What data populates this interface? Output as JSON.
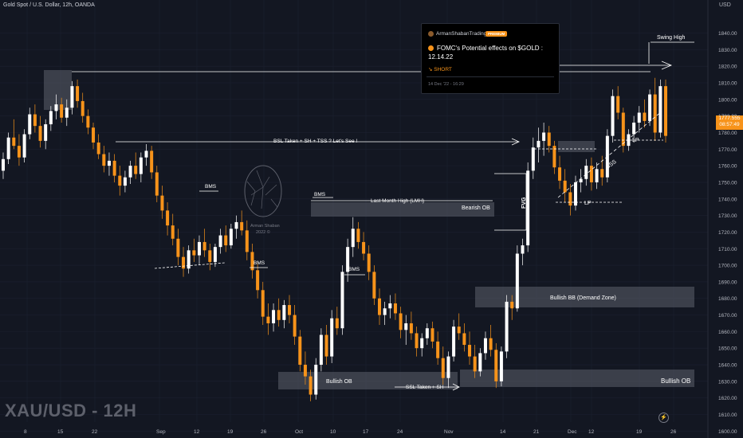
{
  "header": {
    "symbol_line": "Gold Spot / U.S. Dollar, 12h, OANDA"
  },
  "watermark": "XAU/USD - 12H",
  "axis": {
    "unit": "USD",
    "price_ticks": [
      1840,
      1830,
      1820,
      1810,
      1800,
      1790,
      1780,
      1770,
      1760,
      1750,
      1740,
      1730,
      1720,
      1710,
      1700,
      1690,
      1680,
      1670,
      1660,
      1650,
      1640,
      1630,
      1620,
      1610,
      1600
    ],
    "date_ticks": [
      "8",
      "15",
      "22",
      "Sep",
      "12",
      "19",
      "26",
      "Oct",
      "10",
      "17",
      "24",
      "Nov",
      "14",
      "21",
      "Dec",
      "12",
      "19",
      "26"
    ]
  },
  "current_price": {
    "value": "1777.555",
    "countdown": "08:57:49"
  },
  "idea_card": {
    "author": "ArmanShabanTrading",
    "badge": "PREMIUM",
    "title": "FOMC's Potential effects on $GOLD : 12.14.22",
    "direction": "↘ SHORT",
    "timestamp": "14 Dec '22 - 16:29"
  },
  "logo": {
    "line1": "Arman Shaban",
    "line2": "2022 ©"
  },
  "annotations": {
    "swing_high": "Swing High",
    "bsl": "BSL Taken + SH + TSS ? Let's See !",
    "bms": "BMS",
    "lmh": "Last Month High (LMH)",
    "bearish_ob": "Bearish OB",
    "fvg": "FVG",
    "lp": "LP",
    "sss": "SSS",
    "bullish_bb": "Bullish BB (Demand Zone)",
    "bullish_ob": "Bullish OB",
    "ssl": "SSL Taken + SH"
  },
  "colors": {
    "bg": "#131722",
    "up": "#ffffff",
    "down": "#f7931a",
    "zone": "#5d606b",
    "grid": "#1e222d"
  },
  "chart_data": {
    "type": "candlestick",
    "symbol": "XAU/USD",
    "timeframe": "12h",
    "ylim": [
      1598,
      1845
    ],
    "candles": [
      [
        1757,
        1768,
        1752,
        1764
      ],
      [
        1764,
        1780,
        1761,
        1777
      ],
      [
        1777,
        1788,
        1770,
        1772
      ],
      [
        1772,
        1779,
        1760,
        1765
      ],
      [
        1765,
        1782,
        1762,
        1779
      ],
      [
        1779,
        1795,
        1776,
        1791
      ],
      [
        1791,
        1797,
        1780,
        1784
      ],
      [
        1784,
        1790,
        1771,
        1775
      ],
      [
        1775,
        1788,
        1770,
        1785
      ],
      [
        1785,
        1796,
        1781,
        1793
      ],
      [
        1793,
        1803,
        1788,
        1797
      ],
      [
        1797,
        1801,
        1786,
        1789
      ],
      [
        1789,
        1800,
        1784,
        1795
      ],
      [
        1795,
        1811,
        1791,
        1808
      ],
      [
        1808,
        1812,
        1795,
        1799
      ],
      [
        1799,
        1804,
        1786,
        1790
      ],
      [
        1790,
        1794,
        1779,
        1783
      ],
      [
        1783,
        1786,
        1770,
        1774
      ],
      [
        1774,
        1779,
        1764,
        1767
      ],
      [
        1767,
        1772,
        1756,
        1760
      ],
      [
        1760,
        1768,
        1754,
        1763
      ],
      [
        1763,
        1767,
        1750,
        1754
      ],
      [
        1754,
        1760,
        1742,
        1748
      ],
      [
        1748,
        1757,
        1744,
        1753
      ],
      [
        1753,
        1763,
        1749,
        1760
      ],
      [
        1760,
        1768,
        1752,
        1755
      ],
      [
        1755,
        1768,
        1750,
        1765
      ],
      [
        1765,
        1773,
        1760,
        1769
      ],
      [
        1769,
        1772,
        1752,
        1756
      ],
      [
        1756,
        1760,
        1738,
        1742
      ],
      [
        1742,
        1748,
        1728,
        1733
      ],
      [
        1733,
        1738,
        1718,
        1724
      ],
      [
        1724,
        1731,
        1712,
        1716
      ],
      [
        1716,
        1722,
        1700,
        1705
      ],
      [
        1705,
        1711,
        1693,
        1698
      ],
      [
        1698,
        1712,
        1695,
        1709
      ],
      [
        1709,
        1716,
        1702,
        1706
      ],
      [
        1706,
        1718,
        1700,
        1714
      ],
      [
        1714,
        1722,
        1705,
        1709
      ],
      [
        1709,
        1713,
        1697,
        1702
      ],
      [
        1702,
        1713,
        1699,
        1711
      ],
      [
        1711,
        1722,
        1707,
        1718
      ],
      [
        1718,
        1724,
        1708,
        1712
      ],
      [
        1712,
        1725,
        1710,
        1722
      ],
      [
        1722,
        1730,
        1716,
        1726
      ],
      [
        1726,
        1733,
        1718,
        1721
      ],
      [
        1721,
        1727,
        1703,
        1708
      ],
      [
        1708,
        1713,
        1692,
        1697
      ],
      [
        1697,
        1702,
        1680,
        1685
      ],
      [
        1685,
        1690,
        1664,
        1669
      ],
      [
        1669,
        1677,
        1658,
        1665
      ],
      [
        1665,
        1677,
        1660,
        1673
      ],
      [
        1673,
        1680,
        1663,
        1667
      ],
      [
        1667,
        1679,
        1662,
        1676
      ],
      [
        1676,
        1682,
        1665,
        1670
      ],
      [
        1670,
        1676,
        1652,
        1657
      ],
      [
        1657,
        1661,
        1636,
        1640
      ],
      [
        1640,
        1648,
        1628,
        1633
      ],
      [
        1633,
        1637,
        1618,
        1622
      ],
      [
        1622,
        1644,
        1619,
        1640
      ],
      [
        1640,
        1662,
        1636,
        1658
      ],
      [
        1658,
        1664,
        1640,
        1645
      ],
      [
        1645,
        1673,
        1641,
        1668
      ],
      [
        1668,
        1675,
        1658,
        1662
      ],
      [
        1662,
        1700,
        1658,
        1696
      ],
      [
        1696,
        1716,
        1690,
        1711
      ],
      [
        1711,
        1729,
        1705,
        1722
      ],
      [
        1722,
        1726,
        1710,
        1714
      ],
      [
        1714,
        1720,
        1703,
        1707
      ],
      [
        1707,
        1712,
        1691,
        1696
      ],
      [
        1696,
        1700,
        1676,
        1680
      ],
      [
        1680,
        1686,
        1664,
        1670
      ],
      [
        1670,
        1678,
        1664,
        1674
      ],
      [
        1674,
        1682,
        1668,
        1677
      ],
      [
        1677,
        1683,
        1667,
        1671
      ],
      [
        1671,
        1675,
        1656,
        1661
      ],
      [
        1661,
        1670,
        1652,
        1665
      ],
      [
        1665,
        1672,
        1655,
        1659
      ],
      [
        1659,
        1663,
        1645,
        1650
      ],
      [
        1650,
        1659,
        1645,
        1656
      ],
      [
        1656,
        1665,
        1652,
        1662
      ],
      [
        1662,
        1666,
        1650,
        1654
      ],
      [
        1654,
        1660,
        1640,
        1644
      ],
      [
        1644,
        1651,
        1628,
        1632
      ],
      [
        1632,
        1648,
        1626,
        1645
      ],
      [
        1645,
        1667,
        1642,
        1663
      ],
      [
        1663,
        1671,
        1655,
        1659
      ],
      [
        1659,
        1665,
        1648,
        1652
      ],
      [
        1652,
        1660,
        1640,
        1645
      ],
      [
        1645,
        1652,
        1632,
        1636
      ],
      [
        1636,
        1650,
        1633,
        1647
      ],
      [
        1647,
        1660,
        1643,
        1656
      ],
      [
        1656,
        1664,
        1645,
        1649
      ],
      [
        1649,
        1653,
        1626,
        1630
      ],
      [
        1630,
        1651,
        1627,
        1648
      ],
      [
        1648,
        1682,
        1644,
        1678
      ],
      [
        1678,
        1682,
        1667,
        1674
      ],
      [
        1674,
        1712,
        1672,
        1707
      ],
      [
        1707,
        1716,
        1700,
        1712
      ],
      [
        1712,
        1762,
        1708,
        1757
      ],
      [
        1757,
        1777,
        1752,
        1771
      ],
      [
        1771,
        1783,
        1762,
        1775
      ],
      [
        1775,
        1786,
        1766,
        1780
      ],
      [
        1780,
        1784,
        1768,
        1772
      ],
      [
        1772,
        1775,
        1755,
        1759
      ],
      [
        1759,
        1766,
        1746,
        1751
      ],
      [
        1751,
        1758,
        1738,
        1744
      ],
      [
        1744,
        1749,
        1730,
        1736
      ],
      [
        1736,
        1754,
        1733,
        1750
      ],
      [
        1750,
        1758,
        1744,
        1752
      ],
      [
        1752,
        1764,
        1748,
        1760
      ],
      [
        1760,
        1765,
        1745,
        1750
      ],
      [
        1750,
        1762,
        1746,
        1758
      ],
      [
        1758,
        1766,
        1748,
        1753
      ],
      [
        1753,
        1782,
        1750,
        1778
      ],
      [
        1778,
        1806,
        1774,
        1802
      ],
      [
        1802,
        1808,
        1788,
        1792
      ],
      [
        1792,
        1795,
        1768,
        1772
      ],
      [
        1772,
        1782,
        1769,
        1779
      ],
      [
        1779,
        1790,
        1774,
        1786
      ],
      [
        1786,
        1796,
        1780,
        1792
      ],
      [
        1792,
        1800,
        1783,
        1787
      ],
      [
        1787,
        1806,
        1784,
        1803
      ],
      [
        1803,
        1813,
        1775,
        1780
      ],
      [
        1780,
        1812,
        1777,
        1808
      ],
      [
        1808,
        1812,
        1774,
        1778
      ]
    ]
  }
}
